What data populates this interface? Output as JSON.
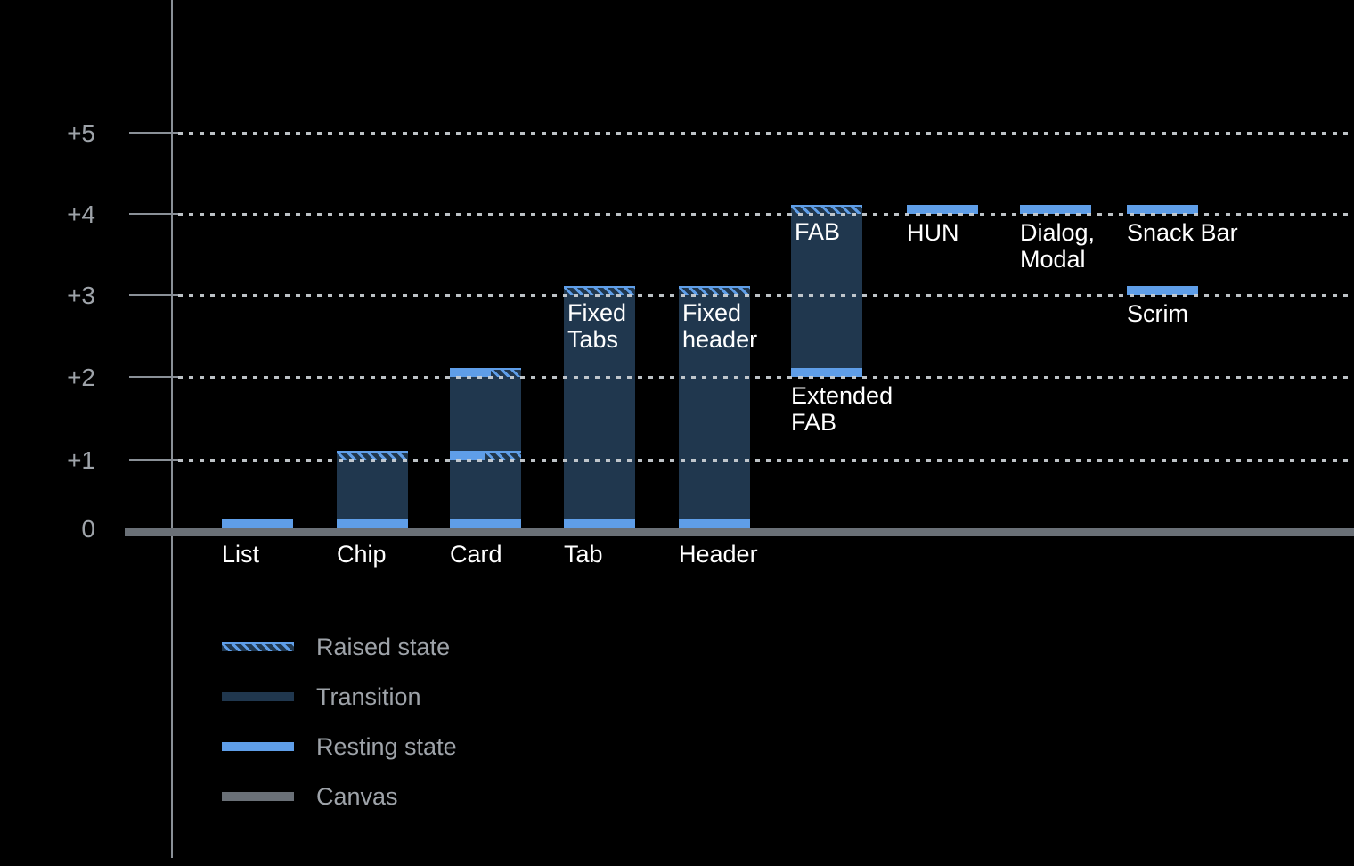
{
  "colors": {
    "background": "#000000",
    "transition_navy": "#20374E",
    "resting_blue": "#5F9EE8",
    "canvas_gray": "#6A7077",
    "axis_gray": "#8A9097",
    "grid_dot_gray": "#CDD2D7",
    "label_white": "#FFFFFF",
    "muted_text_gray": "#9EA3A9"
  },
  "chart_data": {
    "type": "bar",
    "title": "",
    "xlabel": "",
    "ylabel": "",
    "ylim": [
      0,
      5
    ],
    "ytick_labels": [
      "0",
      "+1",
      "+2",
      "+3",
      "+4",
      "+5"
    ],
    "grid": "dotted horizontal gridlines at each elevation level",
    "legend_position": "bottom-left",
    "legend": [
      {
        "style": "raised",
        "label": "Raised state"
      },
      {
        "style": "transition",
        "label": "Transition"
      },
      {
        "style": "resting",
        "label": "Resting state"
      },
      {
        "style": "canvas",
        "label": "Canvas"
      }
    ],
    "bars": [
      {
        "name": "list",
        "col": 0,
        "axis_label": "List",
        "resting_levels": [
          0
        ],
        "raised_levels": [],
        "split_levels": [],
        "transition": null
      },
      {
        "name": "chip",
        "col": 1,
        "axis_label": "Chip",
        "resting_levels": [
          0
        ],
        "raised_levels": [
          1
        ],
        "split_levels": [],
        "transition": [
          0,
          1
        ]
      },
      {
        "name": "card",
        "col": 2,
        "axis_label": "Card",
        "resting_levels": [
          0
        ],
        "raised_levels": [],
        "split_levels": [
          {
            "level": 1,
            "blue_frac": 0.5
          },
          {
            "level": 2,
            "blue_frac": 0.58
          }
        ],
        "transition": [
          0,
          2
        ]
      },
      {
        "name": "tab",
        "col": 3,
        "axis_label": "Tab",
        "inner_label": "Fixed\nTabs",
        "resting_levels": [
          0
        ],
        "raised_levels": [
          3
        ],
        "split_levels": [],
        "transition": [
          0,
          3
        ]
      },
      {
        "name": "header",
        "col": 4,
        "axis_label": "Header",
        "inner_label": "Fixed\nheader",
        "resting_levels": [
          0
        ],
        "raised_levels": [
          3
        ],
        "split_levels": [],
        "transition": [
          0,
          3
        ]
      },
      {
        "name": "fab",
        "col": 5,
        "inner_label": "FAB",
        "float_label": "Extended\nFAB",
        "float_label_level": 2,
        "resting_levels": [
          2
        ],
        "raised_levels": [
          4
        ],
        "split_levels": [],
        "transition": [
          2,
          4
        ]
      },
      {
        "name": "hun",
        "col": 6,
        "float_label": "HUN",
        "float_label_level": 4,
        "resting_levels": [
          4
        ],
        "raised_levels": [],
        "split_levels": [],
        "transition": null
      },
      {
        "name": "dialog-modal",
        "col": 7,
        "float_label": "Dialog,\nModal",
        "float_label_level": 4,
        "resting_levels": [
          4
        ],
        "raised_levels": [],
        "split_levels": [],
        "transition": null
      },
      {
        "name": "snack-bar",
        "col": 8,
        "float_label": "Snack Bar",
        "float_label_level": 4,
        "resting_levels": [
          4
        ],
        "raised_levels": [],
        "split_levels": [],
        "transition": null
      },
      {
        "name": "scrim",
        "col": 8,
        "float_label": "Scrim",
        "float_label_level": 3,
        "resting_levels": [
          3
        ],
        "raised_levels": [],
        "split_levels": [],
        "transition": null
      }
    ]
  }
}
